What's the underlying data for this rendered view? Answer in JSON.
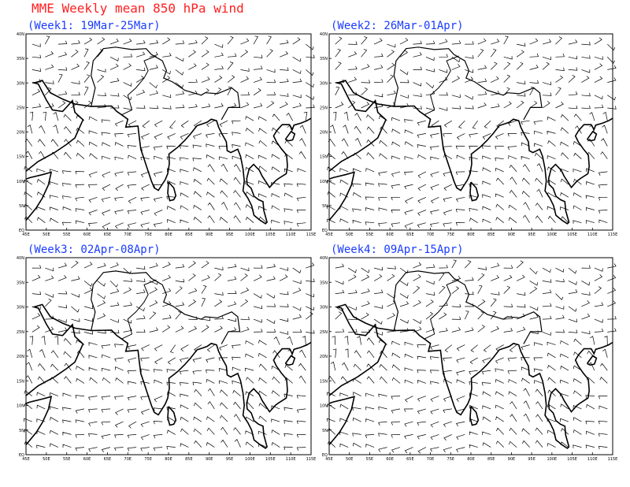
{
  "title": "MME Weekly mean 850 hPa wind",
  "panels": [
    {
      "title": "(Week1: 19Mar-25Mar)"
    },
    {
      "title": "(Week2: 26Mar-01Apr)"
    },
    {
      "title": "(Week3: 02Apr-08Apr)"
    },
    {
      "title": "(Week4: 09Apr-15Apr)"
    }
  ],
  "lat_labels": [
    "EQ",
    "5N",
    "10N",
    "15N",
    "20N",
    "25N",
    "30N",
    "35N",
    "40N"
  ],
  "lon_labels": [
    "45E",
    "50E",
    "55E",
    "60E",
    "65E",
    "70E",
    "75E",
    "80E",
    "85E",
    "90E",
    "95E",
    "100E",
    "105E",
    "110E",
    "115E"
  ]
}
